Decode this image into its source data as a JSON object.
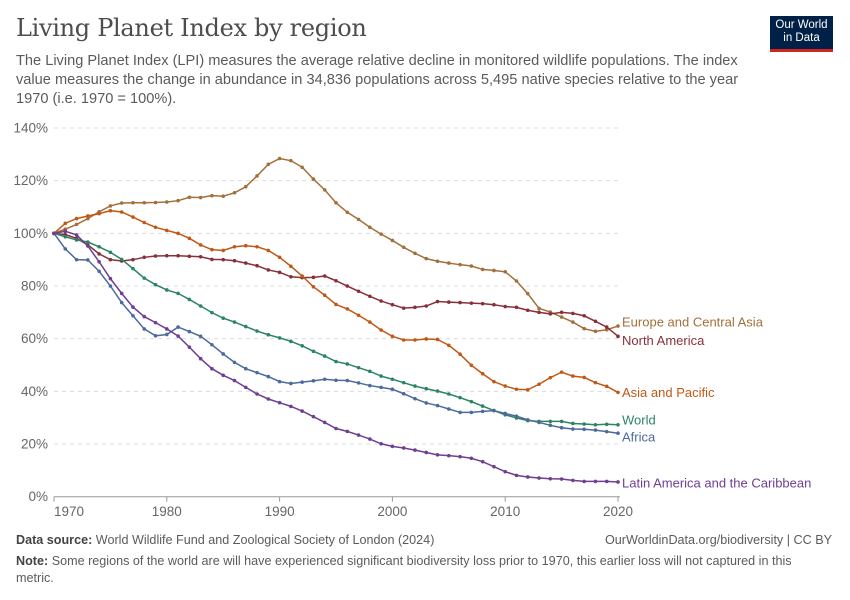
{
  "header": {
    "title": "Living Planet Index by region",
    "subtitle": "The Living Planet Index (LPI) measures the average relative decline in monitored wildlife populations. The index value measures the change in abundance in 34,836 populations across 5,495 native species relative to the year 1970 (i.e. 1970 = 100%).",
    "logo": "Our World in Data"
  },
  "footer": {
    "source_label": "Data source:",
    "source": "World Wildlife Fund and Zoological Society of London (2024)",
    "url": "OurWorldinData.org/biodiversity | CC BY",
    "note_label": "Note:",
    "note": "Some regions of the world are will have experienced significant biodiversity loss prior to 1970, this earlier loss will not captured in this metric."
  },
  "chart_data": {
    "type": "line",
    "title": "Living Planet Index by region",
    "xlim": [
      1970,
      2020
    ],
    "ylim": [
      0,
      140
    ],
    "x_ticks": [
      "1970",
      "1980",
      "1990",
      "2000",
      "2010",
      "2020"
    ],
    "y_ticks": [
      "0%",
      "20%",
      "40%",
      "60%",
      "80%",
      "100%",
      "120%",
      "140%"
    ],
    "grid": "horizontal dashed",
    "legend": "inline labels at line ends (right)",
    "x_start": 1970,
    "series": [
      {
        "name": "Europe and Central Asia",
        "color": "#a2703a",
        "values": [
          100,
          101.6,
          103.4,
          105.6,
          108.2,
          110.4,
          111.5,
          111.6,
          111.6,
          111.7,
          111.9,
          112.4,
          113.7,
          113.6,
          114.3,
          114.1,
          115.4,
          117.7,
          121.8,
          126.2,
          128.4,
          127.6,
          125.1,
          120.6,
          116.5,
          111.6,
          108.0,
          105.3,
          102.3,
          99.7,
          97.3,
          94.7,
          92.4,
          90.4,
          89.4,
          88.7,
          88.1,
          87.6,
          86.3,
          85.9,
          85.4,
          81.9,
          77.1,
          71.5,
          70.1,
          68.2,
          66.3,
          63.8,
          62.8,
          63.4,
          64.8
        ]
      },
      {
        "name": "North America",
        "color": "#883039",
        "values": [
          100,
          99.5,
          98.1,
          95.6,
          92.2,
          90.0,
          89.5,
          90.0,
          90.9,
          91.4,
          91.5,
          91.5,
          91.3,
          91.1,
          90.1,
          90.0,
          89.6,
          88.7,
          87.7,
          86.1,
          85.2,
          83.5,
          83.2,
          83.3,
          83.8,
          82.0,
          80.0,
          78.0,
          76.1,
          74.3,
          72.9,
          71.6,
          71.9,
          72.4,
          74.1,
          73.9,
          73.7,
          73.5,
          73.3,
          72.9,
          72.2,
          71.9,
          70.8,
          70.0,
          69.4,
          70.0,
          69.6,
          68.7,
          66.6,
          64.4,
          60.9
        ]
      },
      {
        "name": "Asia and Pacific",
        "color": "#c05917",
        "values": [
          100,
          103.8,
          105.6,
          106.6,
          107.5,
          108.6,
          108.1,
          106.2,
          104.1,
          102.3,
          101.1,
          100,
          98.1,
          95.6,
          93.8,
          93.5,
          94.9,
          95.3,
          94.9,
          93.5,
          90.9,
          87.5,
          83.8,
          79.7,
          76.5,
          73.0,
          71.3,
          68.9,
          66.3,
          63.3,
          60.9,
          59.5,
          59.5,
          59.9,
          59.7,
          57.5,
          54.1,
          49.9,
          46.7,
          43.7,
          42.0,
          40.8,
          40.6,
          42.7,
          45.2,
          47.3,
          45.8,
          45.3,
          43.3,
          41.9,
          39.6
        ]
      },
      {
        "name": "World",
        "color": "#2c8465",
        "values": [
          100,
          98.7,
          97.5,
          96.7,
          94.9,
          92.8,
          90.1,
          86.6,
          83.0,
          80.5,
          78.5,
          77.2,
          74.9,
          72.4,
          69.9,
          67.8,
          66.3,
          64.6,
          62.9,
          61.5,
          60.3,
          59.0,
          57.3,
          55.2,
          53.4,
          51.3,
          50.4,
          49.0,
          47.6,
          45.8,
          44.6,
          43.3,
          42.0,
          41.0,
          40.1,
          39.0,
          37.6,
          36.1,
          34.4,
          32.7,
          31.1,
          29.9,
          28.9,
          28.6,
          28.6,
          28.6,
          27.8,
          27.6,
          27.3,
          27.5,
          27.3
        ]
      },
      {
        "name": "Africa",
        "color": "#4c6a9c",
        "values": [
          100,
          94.1,
          90.0,
          89.9,
          85.6,
          80.0,
          73.7,
          68.7,
          63.7,
          61.1,
          61.6,
          64.4,
          62.7,
          60.9,
          57.7,
          54.2,
          51.0,
          48.6,
          47.1,
          45.6,
          43.7,
          43.0,
          43.5,
          44.0,
          44.6,
          44.2,
          44.1,
          43.2,
          42.2,
          41.5,
          40.8,
          39.1,
          37.2,
          35.6,
          34.6,
          33.3,
          32.0,
          32.0,
          32.4,
          32.7,
          31.6,
          30.6,
          29.2,
          28.2,
          27.1,
          26.2,
          25.7,
          25.6,
          25.3,
          24.7,
          24.1
        ]
      },
      {
        "name": "Latin America and the Caribbean",
        "color": "#6d3e91",
        "values": [
          100,
          100.8,
          99.4,
          95.2,
          89.2,
          82.8,
          77.2,
          72.0,
          68.4,
          66.1,
          63.7,
          61.0,
          56.8,
          52.4,
          48.6,
          46.1,
          44.1,
          41.5,
          39.0,
          37.1,
          35.7,
          34.3,
          32.5,
          30.4,
          28.2,
          25.9,
          24.8,
          23.4,
          21.9,
          20.1,
          19.1,
          18.5,
          17.7,
          16.8,
          15.9,
          15.6,
          15.2,
          14.6,
          13.3,
          11.4,
          9.5,
          8.1,
          7.5,
          7.1,
          6.8,
          6.7,
          6.2,
          5.8,
          5.8,
          5.8,
          5.6
        ]
      }
    ]
  }
}
